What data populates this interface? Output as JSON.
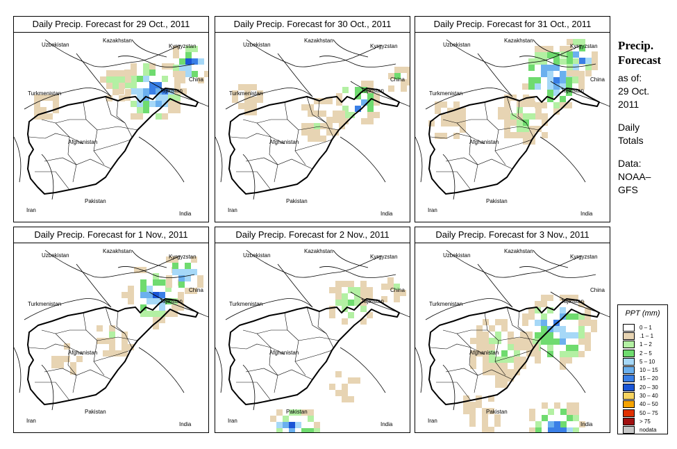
{
  "panels": [
    {
      "title": "Daily Precip. Forecast for  29 Oct., 2011"
    },
    {
      "title": "Daily Precip. Forecast for  30 Oct., 2011"
    },
    {
      "title": "Daily Precip. Forecast for  31 Oct., 2011"
    },
    {
      "title": "Daily Precip. Forecast for  1 Nov., 2011"
    },
    {
      "title": "Daily Precip. Forecast for  2 Nov., 2011"
    },
    {
      "title": "Daily Precip. Forecast for  3 Nov., 2011"
    }
  ],
  "map_labels": {
    "uzbekistan": "Uzbekistan",
    "kazakhstan": "Kazakhstan",
    "kyrgyzstan": "Kyrgyzstan",
    "turkmenistan": "Turkmenistan",
    "tajikistan": "Tajikistan",
    "china": "China",
    "afghanistan": "Afghanistan",
    "pakistan": "Pakistan",
    "iran": "Iran",
    "india": "India"
  },
  "side": {
    "title_line1": "Precip.",
    "title_line2": "Forecast",
    "asof_line1": "as of:",
    "asof_line2": "29 Oct.",
    "asof_line3": "2011",
    "daily_line1": "Daily",
    "daily_line2": "Totals",
    "data_line1": "Data:",
    "data_line2": "NOAA–",
    "data_line3": "GFS"
  },
  "legend": {
    "title": "PPT (mm)",
    "items": [
      {
        "label": "0 – 1",
        "color": "#ffffff"
      },
      {
        "label": ".1 – 1",
        "color": "#e7d4b3"
      },
      {
        "label": "1 – 2",
        "color": "#b3f0a3"
      },
      {
        "label": "2 – 5",
        "color": "#6fdb6f"
      },
      {
        "label": "5 – 10",
        "color": "#a6d8f7"
      },
      {
        "label": "10 – 15",
        "color": "#6bb0ee"
      },
      {
        "label": "15 – 20",
        "color": "#3a7fe6"
      },
      {
        "label": "20 – 30",
        "color": "#1a55d6"
      },
      {
        "label": "30 – 40",
        "color": "#f7d460"
      },
      {
        "label": "40 – 50",
        "color": "#f5a300"
      },
      {
        "label": "50 – 75",
        "color": "#e03000"
      },
      {
        "label": "> 75",
        "color": "#a01010"
      },
      {
        "label": "nodata",
        "color": "#c8c8c8"
      }
    ]
  }
}
